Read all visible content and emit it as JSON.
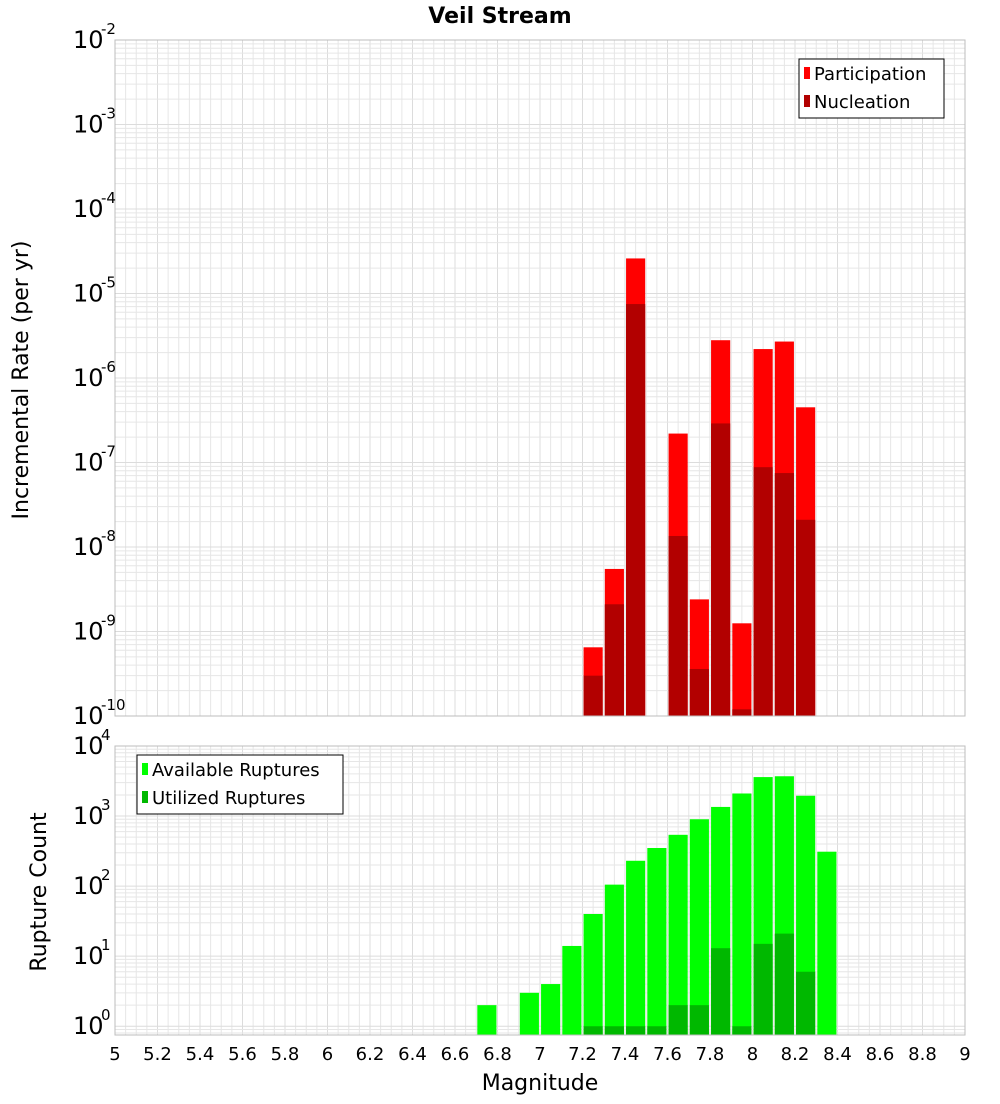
{
  "chart_data": [
    {
      "type": "bar",
      "title": "Veil Stream",
      "ylabel": "Incremental Rate (per yr)",
      "xlabel": "",
      "xlim": [
        5,
        9
      ],
      "ylim": [
        1e-10,
        0.01
      ],
      "y_scale": "log",
      "y_tick_exponents": [
        "-10",
        "-9",
        "-8",
        "-7",
        "-6",
        "-5",
        "-4",
        "-3",
        "-2"
      ],
      "y_tick_base": "10",
      "grid": true,
      "legend_position": "top-right",
      "bar_width": 0.09,
      "x": [
        7.25,
        7.35,
        7.45,
        7.65,
        7.75,
        7.85,
        7.95,
        8.05,
        8.15,
        8.25
      ],
      "series": [
        {
          "name": "Participation",
          "color": "#ff0000",
          "values": [
            6.5e-10,
            5.5e-09,
            2.6e-05,
            2.2e-07,
            2.4e-09,
            2.8e-06,
            1.25e-09,
            2.2e-06,
            2.7e-06,
            4.5e-07
          ]
        },
        {
          "name": "Nucleation",
          "color": "#b20000",
          "values": [
            3e-10,
            2.1e-09,
            7.5e-06,
            1.35e-08,
            3.6e-10,
            2.9e-07,
            1.2e-10,
            8.8e-08,
            7.5e-08,
            2.1e-08
          ]
        }
      ]
    },
    {
      "type": "bar",
      "title": "",
      "ylabel": "Rupture Count",
      "xlabel": "Magnitude",
      "xlim": [
        5,
        9
      ],
      "ylim": [
        0.75,
        10000
      ],
      "y_scale": "log",
      "y_tick_exponents": [
        "0",
        "1",
        "2",
        "3",
        "4"
      ],
      "y_tick_base": "10",
      "x_ticks": [
        "5",
        "5.2",
        "5.4",
        "5.6",
        "5.8",
        "6",
        "6.2",
        "6.4",
        "6.6",
        "6.8",
        "7",
        "7.2",
        "7.4",
        "7.6",
        "7.8",
        "8",
        "8.2",
        "8.4",
        "8.6",
        "8.8",
        "9"
      ],
      "grid": true,
      "legend_position": "top-left",
      "bar_width": 0.09,
      "x": [
        6.75,
        6.95,
        7.05,
        7.15,
        7.25,
        7.35,
        7.45,
        7.55,
        7.65,
        7.75,
        7.85,
        7.95,
        8.05,
        8.15,
        8.25,
        8.35
      ],
      "series": [
        {
          "name": "Available Ruptures",
          "color": "#00ff00",
          "values": [
            2,
            3,
            4,
            14,
            40,
            105,
            230,
            350,
            540,
            900,
            1350,
            2100,
            3600,
            3700,
            1950,
            310
          ]
        },
        {
          "name": "Utilized Ruptures",
          "color": "#00b800",
          "values": [
            0,
            0,
            0,
            0,
            1,
            1,
            1,
            1,
            2,
            2,
            13,
            1,
            15,
            21,
            6,
            0
          ]
        }
      ]
    }
  ]
}
